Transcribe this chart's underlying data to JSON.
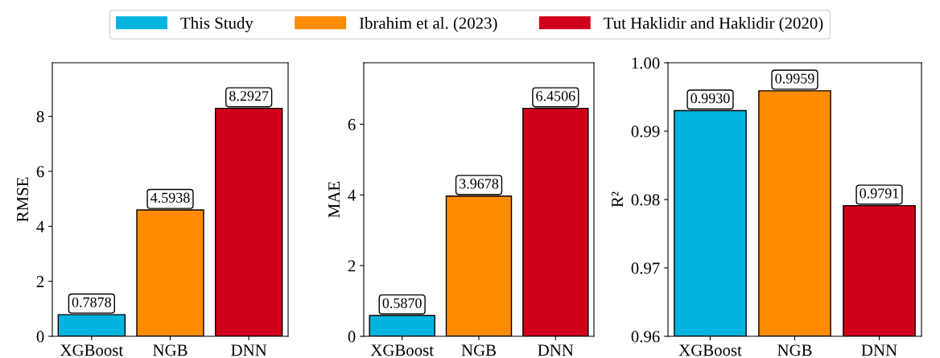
{
  "chart_data": [
    {
      "type": "bar",
      "categories": [
        "XGBoost",
        "NGB",
        "DNN"
      ],
      "ylabel": "RMSE",
      "ylim": [
        0,
        9.95
      ],
      "yticks": [
        0,
        2,
        4,
        6,
        8
      ],
      "legend": "top",
      "grid": false,
      "series": [
        {
          "name": "This Study",
          "color": "#00b4e0",
          "values": [
            0.7878,
            null,
            null
          ],
          "value_labels": [
            "0.7878",
            null,
            null
          ]
        },
        {
          "name": "Ibrahim et al. (2023)",
          "color": "#ff8c00",
          "values": [
            null,
            4.5938,
            null
          ],
          "value_labels": [
            null,
            "4.5938",
            null
          ]
        },
        {
          "name": "Tut Haklidir and Haklidir (2020)",
          "color": "#d0001a",
          "values": [
            null,
            null,
            8.2927
          ],
          "value_labels": [
            null,
            null,
            "8.2927"
          ]
        }
      ]
    },
    {
      "type": "bar",
      "categories": [
        "XGBoost",
        "NGB",
        "DNN"
      ],
      "ylabel": "MAE",
      "ylim": [
        0,
        7.74
      ],
      "yticks": [
        0,
        2,
        4,
        6
      ],
      "grid": false,
      "series": [
        {
          "color": "#00b4e0",
          "values": [
            0.587,
            null,
            null
          ],
          "value_labels": [
            "0.5870",
            null,
            null
          ]
        },
        {
          "color": "#ff8c00",
          "values": [
            null,
            3.9678,
            null
          ],
          "value_labels": [
            null,
            "3.9678",
            null
          ]
        },
        {
          "color": "#d0001a",
          "values": [
            null,
            null,
            6.4506
          ],
          "value_labels": [
            null,
            null,
            "6.4506"
          ]
        }
      ]
    },
    {
      "type": "bar",
      "categories": [
        "XGBoost",
        "NGB",
        "DNN"
      ],
      "ylabel": "R²",
      "ylim": [
        0.96,
        1.0
      ],
      "yticks": [
        {
          "value": 0.96,
          "label": "0.96"
        },
        {
          "value": 0.97,
          "label": "0.97"
        },
        {
          "value": 0.98,
          "label": "0.98"
        },
        {
          "value": 0.99,
          "label": "0.99"
        },
        {
          "value": 1.0,
          "label": "1.00"
        }
      ],
      "grid": false,
      "series": [
        {
          "color": "#00b4e0",
          "values": [
            0.993,
            null,
            null
          ],
          "value_labels": [
            "0.9930",
            null,
            null
          ]
        },
        {
          "color": "#ff8c00",
          "values": [
            null,
            0.9959,
            null
          ],
          "value_labels": [
            null,
            "0.9959",
            null
          ]
        },
        {
          "color": "#d0001a",
          "values": [
            null,
            null,
            0.9791
          ],
          "value_labels": [
            null,
            null,
            "0.9791"
          ]
        }
      ]
    }
  ]
}
